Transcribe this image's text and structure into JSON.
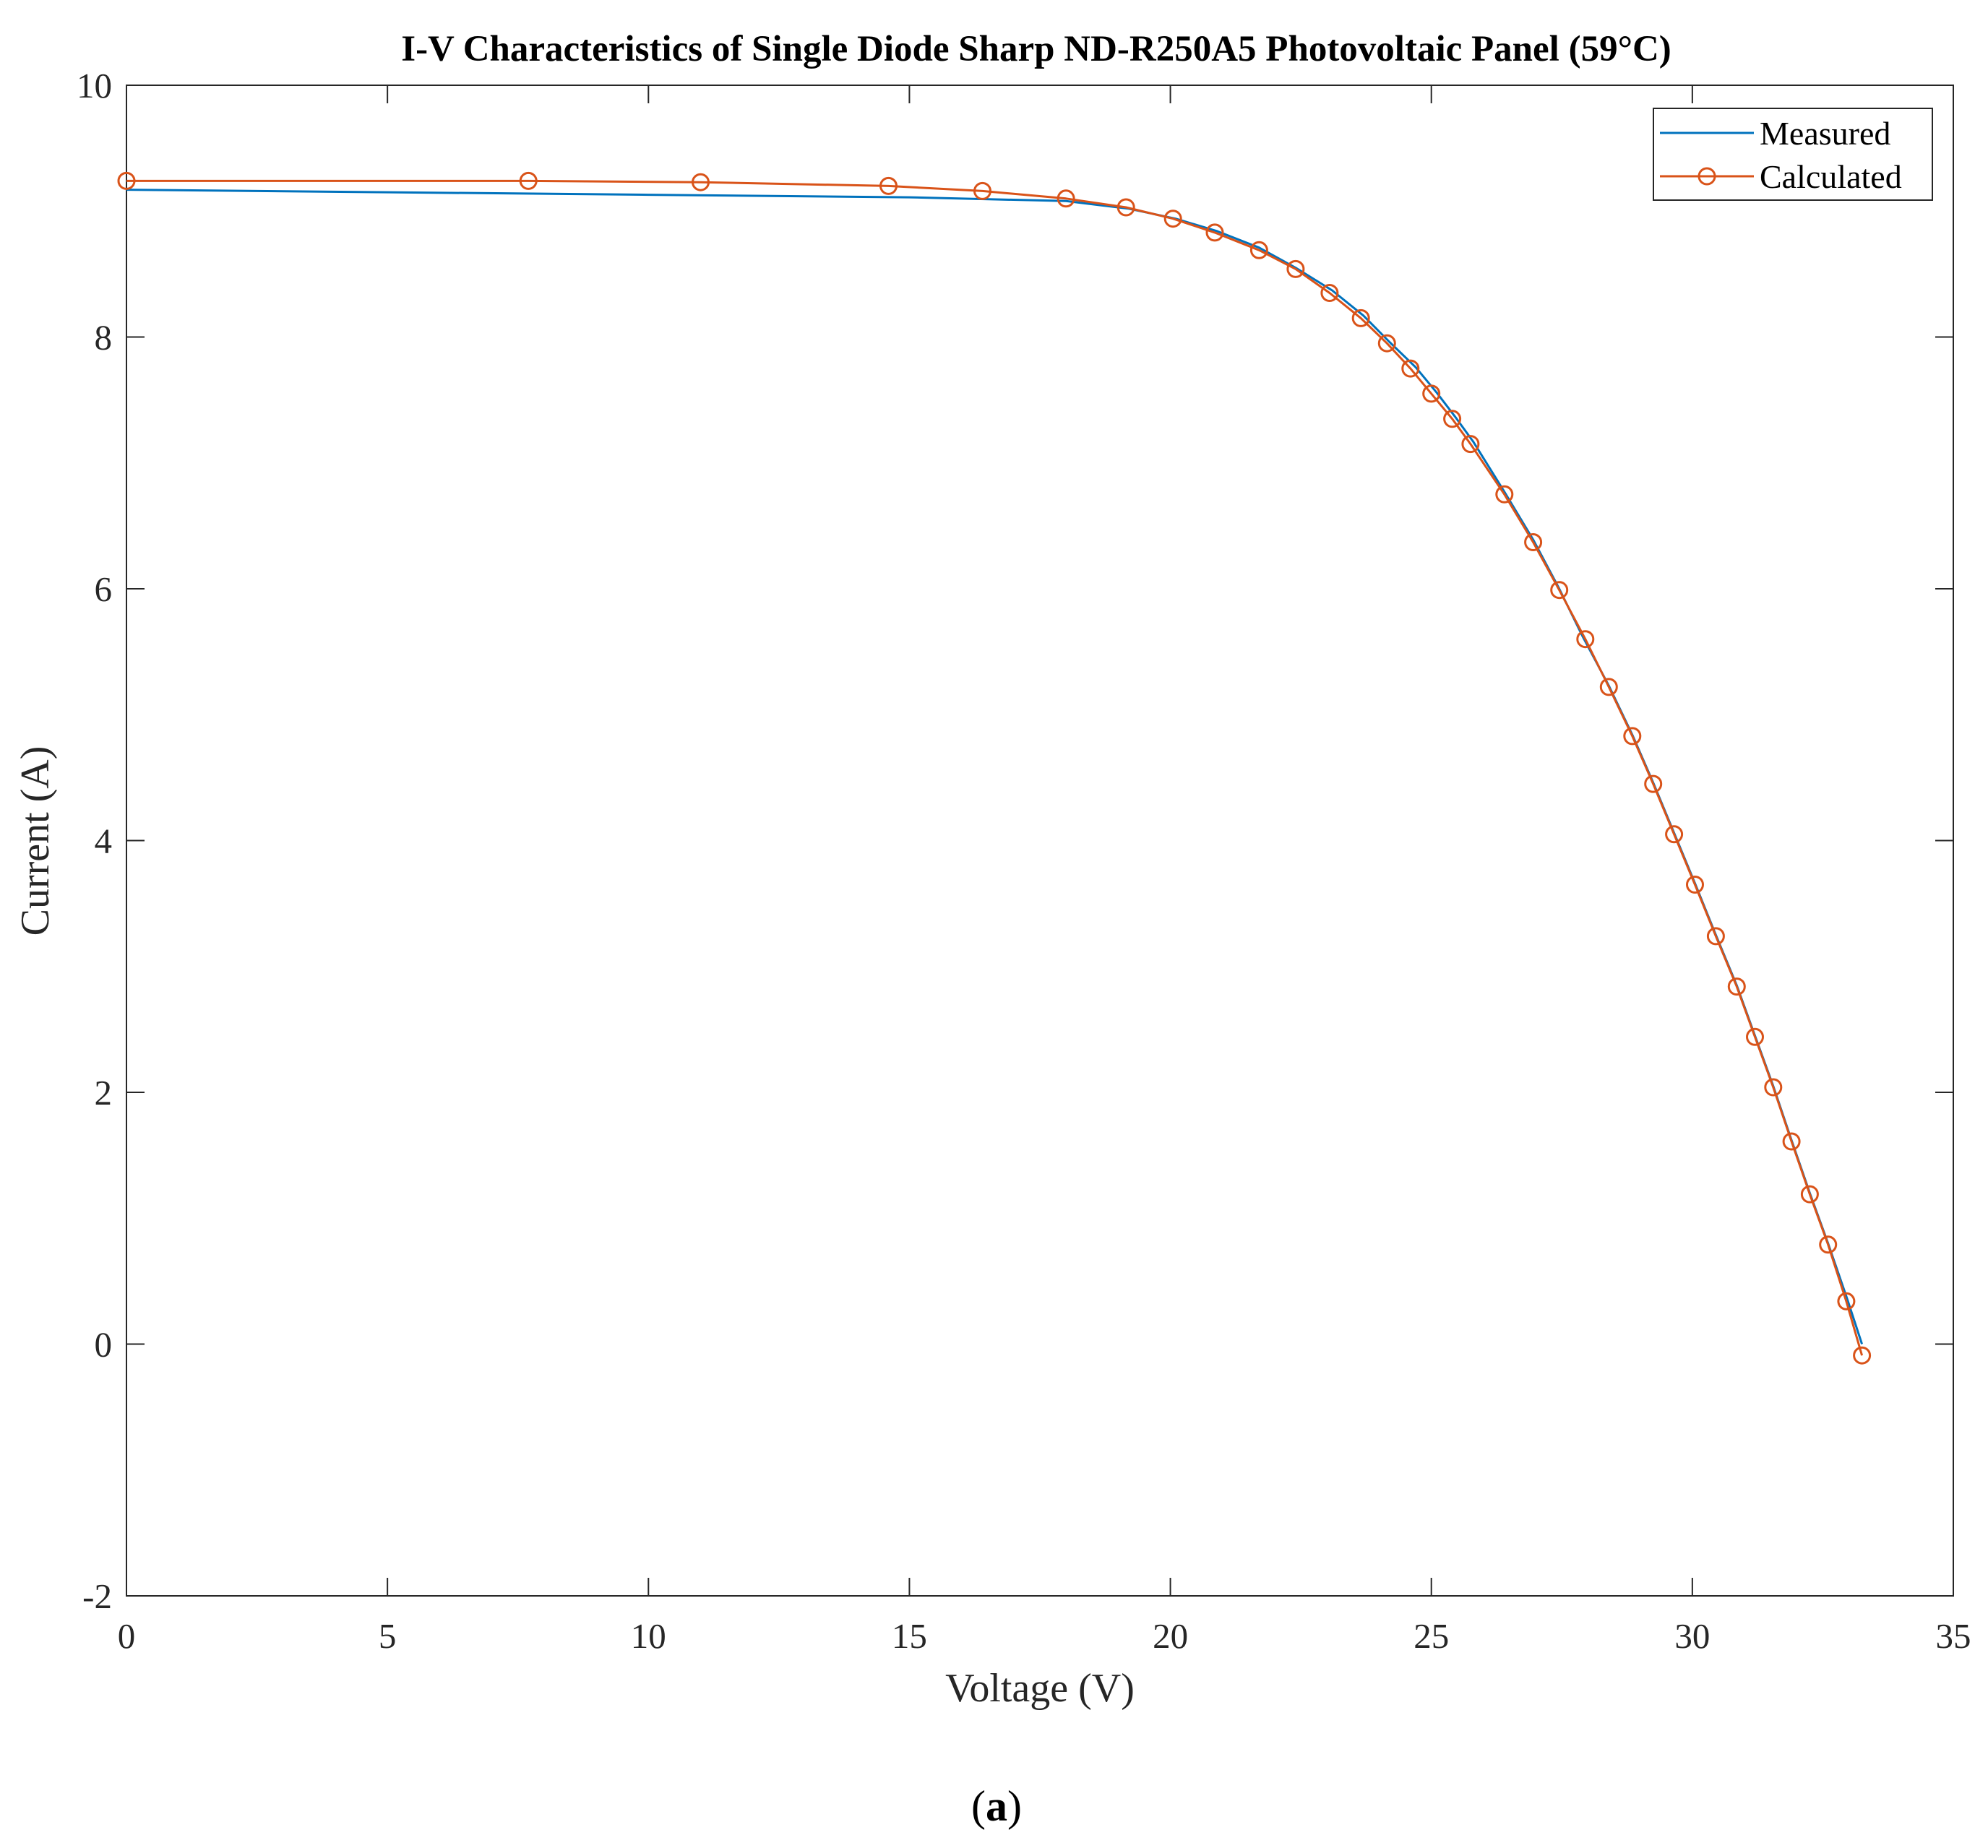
{
  "chart_data": {
    "type": "line",
    "title": "I-V Characteristics of Single Diode Sharp ND-R250A5 Photovoltaic Panel (59°C)",
    "xlabel": "Voltage (V)",
    "ylabel": "Current (A)",
    "xlim": [
      0,
      35
    ],
    "ylim": [
      -2,
      10
    ],
    "xticks": [
      0,
      5,
      10,
      15,
      20,
      25,
      30,
      35
    ],
    "yticks": [
      -2,
      0,
      2,
      4,
      6,
      8,
      10
    ],
    "grid": false,
    "legend_position": "top-right",
    "series": [
      {
        "name": "Measured",
        "color": "#0072BD",
        "marker": "none",
        "x": [
          0,
          5,
          10,
          15,
          18,
          19.2,
          20.1,
          20.9,
          21.7,
          22.4,
          23.1,
          23.7,
          24.2,
          24.7,
          25.1,
          25.45,
          25.8,
          26.4,
          26.95,
          27.45,
          27.9,
          28.4,
          28.85,
          29.25,
          29.65,
          30.05,
          30.45,
          30.85,
          31.2,
          31.55,
          31.9,
          32.25,
          32.6,
          32.95,
          33.25
        ],
        "y": [
          9.17,
          9.15,
          9.13,
          9.11,
          9.08,
          9.02,
          8.94,
          8.84,
          8.71,
          8.55,
          8.37,
          8.17,
          7.96,
          7.76,
          7.56,
          7.37,
          7.17,
          6.77,
          6.39,
          6.0,
          5.62,
          5.23,
          4.84,
          4.46,
          4.06,
          3.66,
          3.25,
          2.85,
          2.45,
          2.05,
          1.62,
          1.2,
          0.8,
          0.38,
          0.0
        ]
      },
      {
        "name": "Calculated",
        "color": "#D95319",
        "marker": "circle",
        "x": [
          0,
          7.7,
          11.0,
          14.6,
          16.4,
          18.0,
          19.15,
          20.05,
          20.85,
          21.7,
          22.4,
          23.05,
          23.65,
          24.15,
          24.6,
          25.0,
          25.4,
          25.75,
          26.4,
          26.95,
          27.45,
          27.95,
          28.4,
          28.85,
          29.25,
          29.65,
          30.05,
          30.45,
          30.85,
          31.2,
          31.55,
          31.9,
          32.25,
          32.6,
          32.95,
          33.25
        ],
        "y": [
          9.24,
          9.24,
          9.23,
          9.2,
          9.16,
          9.1,
          9.03,
          8.94,
          8.83,
          8.69,
          8.54,
          8.35,
          8.15,
          7.95,
          7.75,
          7.55,
          7.35,
          7.15,
          6.75,
          6.37,
          5.99,
          5.6,
          5.22,
          4.83,
          4.45,
          4.05,
          3.65,
          3.24,
          2.84,
          2.44,
          2.04,
          1.61,
          1.19,
          0.79,
          0.34,
          -0.09
        ]
      }
    ]
  },
  "caption": {
    "open": "(",
    "letter": "a",
    "close": ")"
  }
}
